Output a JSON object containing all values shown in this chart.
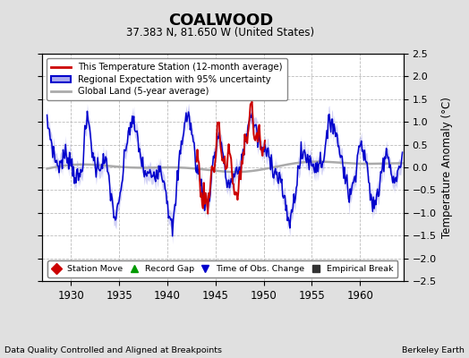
{
  "title": "COALWOOD",
  "subtitle": "37.383 N, 81.650 W (United States)",
  "ylabel": "Temperature Anomaly (°C)",
  "footer_left": "Data Quality Controlled and Aligned at Breakpoints",
  "footer_right": "Berkeley Earth",
  "xlim": [
    1927.0,
    1964.5
  ],
  "ylim": [
    -2.5,
    2.5
  ],
  "xticks": [
    1930,
    1935,
    1940,
    1945,
    1950,
    1955,
    1960
  ],
  "yticks": [
    -2.5,
    -2.0,
    -1.5,
    -1.0,
    -0.5,
    0.0,
    0.5,
    1.0,
    1.5,
    2.0,
    2.5
  ],
  "bg_color": "#e0e0e0",
  "plot_bg_color": "#ffffff",
  "grid_color": "#bbbbbb",
  "blue_line_color": "#0000cc",
  "blue_fill_color": "#aaaaee",
  "red_line_color": "#cc0000",
  "gray_line_color": "#aaaaaa",
  "legend1_items": [
    {
      "label": "This Temperature Station (12-month average)",
      "color": "#cc0000"
    },
    {
      "label": "Regional Expectation with 95% uncertainty",
      "color": "#0000cc"
    },
    {
      "label": "Global Land (5-year average)",
      "color": "#aaaaaa"
    }
  ],
  "legend2_items": [
    {
      "label": "Station Move",
      "marker": "D",
      "color": "#cc0000"
    },
    {
      "label": "Record Gap",
      "marker": "^",
      "color": "#009900"
    },
    {
      "label": "Time of Obs. Change",
      "marker": "v",
      "color": "#0000cc"
    },
    {
      "label": "Empirical Break",
      "marker": "s",
      "color": "#333333"
    }
  ]
}
